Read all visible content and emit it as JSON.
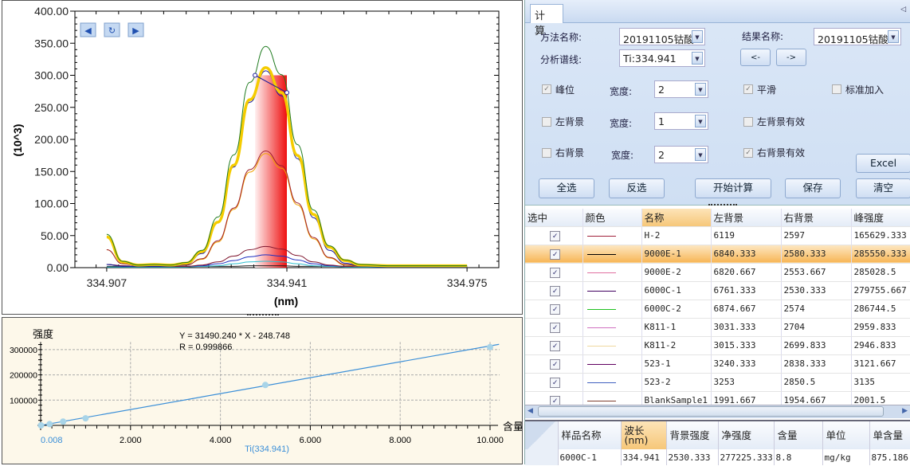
{
  "spectrum": {
    "nav_buttons": {
      "prev": "◀",
      "refresh": "↻",
      "next": "▶"
    },
    "chart_data": {
      "type": "line",
      "ylabel": "(10^3)",
      "xlabel": "(nm)",
      "ylim": [
        0,
        400
      ],
      "xlim": [
        334.901,
        334.981
      ],
      "yticks": [
        "0.00",
        "50.00",
        "100.00",
        "150.00",
        "200.00",
        "250.00",
        "300.00",
        "350.00",
        "400.00"
      ],
      "xticks": [
        "334.907",
        "334.941",
        "334.975"
      ],
      "x": [
        334.907,
        334.91,
        334.913,
        334.916,
        334.919,
        334.922,
        334.925,
        334.928,
        334.931,
        334.934,
        334.937,
        334.94,
        334.943,
        334.946,
        334.949,
        334.952,
        334.955,
        334.96,
        334.965,
        334.97,
        334.975
      ],
      "series": [
        {
          "color": "#1e7a1e",
          "width": 1,
          "values": [
            52,
            10,
            4,
            5,
            4,
            8,
            27,
            79,
            176,
            289,
            345,
            301,
            192,
            90,
            34,
            12,
            5,
            3,
            3,
            3,
            3
          ]
        },
        {
          "color": "#f5cc00",
          "width": 3.5,
          "values": [
            48,
            9,
            4,
            5,
            4,
            7,
            25,
            71,
            160,
            262,
            312,
            273,
            175,
            83,
            32,
            11,
            4,
            3,
            3,
            3,
            3
          ]
        },
        {
          "color": "#1a1a9a",
          "width": 1,
          "values": [
            5,
            2,
            2,
            2,
            2,
            5,
            22,
            70,
            157,
            258,
            307,
            268,
            170,
            78,
            27,
            7,
            2,
            1,
            1,
            1,
            1
          ]
        },
        {
          "color": "#a0202a",
          "width": 1,
          "values": [
            28,
            6,
            3,
            4,
            3,
            4,
            14,
            42,
            93,
            153,
            182,
            159,
            101,
            47,
            16,
            5,
            2,
            2,
            2,
            2,
            2
          ]
        },
        {
          "color": "#f0a000",
          "width": 1,
          "values": [
            28,
            6,
            3,
            4,
            3,
            4,
            13,
            40,
            91,
            149,
            178,
            155,
            98,
            45,
            15,
            4,
            2,
            2,
            2,
            2,
            2
          ]
        },
        {
          "color": "#801830",
          "width": 1,
          "values": [
            5,
            3,
            2,
            2,
            2,
            2,
            4,
            9,
            18,
            28,
            33,
            29,
            19,
            9,
            4,
            2,
            2,
            2,
            2,
            2,
            2
          ]
        },
        {
          "color": "#2030c0",
          "width": 1,
          "values": [
            5,
            3,
            2,
            2,
            2,
            2,
            3,
            6,
            11,
            17,
            20,
            18,
            12,
            6,
            3,
            2,
            2,
            2,
            2,
            2,
            2
          ]
        },
        {
          "color": "#30c0d0",
          "width": 1,
          "values": [
            1,
            1,
            1,
            1,
            1,
            1,
            2,
            3,
            6,
            9,
            10,
            9,
            6,
            3,
            2,
            1,
            1,
            1,
            1,
            1,
            1
          ]
        },
        {
          "color": "#202020",
          "width": 1,
          "values": [
            2,
            2,
            2,
            2,
            2,
            2,
            2,
            2,
            2,
            3,
            3,
            3,
            2,
            2,
            2,
            2,
            2,
            2,
            2,
            2,
            2
          ]
        }
      ],
      "integration_window": [
        334.935,
        334.941
      ],
      "peak_marker_line": {
        "x": [
          334.935,
          334.941
        ],
        "y": [
          300,
          273
        ]
      }
    }
  },
  "calibration": {
    "equation": "Y = 31490.240 * X - 248.748",
    "r_value": "R = 0.999866",
    "chart_data": {
      "type": "scatter",
      "ylabel": "强度",
      "xlabel": "含量(",
      "series_label": "Ti(334.941)",
      "first_x_label": "0.008",
      "xticks": [
        "2.000",
        "4.000",
        "6.000",
        "8.000",
        "10.000"
      ],
      "yticks": [
        "100000",
        "200000",
        "300000"
      ],
      "xlim": [
        0,
        10.2
      ],
      "ylim": [
        0,
        330000
      ],
      "points": {
        "x": [
          0.008,
          0.2,
          0.5,
          1.0,
          5.0,
          10.0
        ],
        "y": [
          0,
          5000,
          15000,
          28000,
          160000,
          310000
        ]
      },
      "fit": {
        "slope": 31490.24,
        "intercept": -248.748
      },
      "line_color": "#3b8fd8",
      "point_color": "#a8d4e8"
    }
  },
  "panel": {
    "tab": "计 算",
    "method_label": "方法名称:",
    "method_value": "20191105钴酸",
    "result_label": "结果名称:",
    "result_value": "20191105钴酸",
    "line_label": "分析谱线:",
    "line_value": "Ti:334.941",
    "prev_btn": "<-",
    "next_btn": "->",
    "peak_label": "峰位",
    "peak_checked": true,
    "width_label": "宽度:",
    "width1": "2",
    "width2": "1",
    "width3": "2",
    "smooth_label": "平滑",
    "smooth_checked": true,
    "std_add_label": "标准加入",
    "std_add_checked": false,
    "left_bg_label": "左背景",
    "left_bg_checked": false,
    "left_bg_valid_label": "左背景有效",
    "left_bg_valid_checked": false,
    "right_bg_label": "右背景",
    "right_bg_checked": false,
    "right_bg_valid_label": "右背景有效",
    "right_bg_valid_checked": true,
    "excel": "Excel",
    "select_all": "全选",
    "invert": "反选",
    "calculate": "开始计算",
    "save": "保存",
    "clear": "清空"
  },
  "grid": {
    "headers": [
      "选中",
      "颜色",
      "名称",
      "左背景",
      "右背景",
      "峰强度"
    ],
    "selected_index": 1,
    "rows": [
      {
        "checked": true,
        "color": "#a0203a",
        "name": "H-2",
        "left": "6119",
        "right": "2597",
        "peak": "165629.333"
      },
      {
        "checked": true,
        "color": "#000000",
        "name": "9000E-1",
        "left": "6840.333",
        "right": "2580.333",
        "peak": "285550.333"
      },
      {
        "checked": true,
        "color": "#e070a0",
        "name": "9000E-2",
        "left": "6820.667",
        "right": "2553.667",
        "peak": "285028.5"
      },
      {
        "checked": true,
        "color": "#400060",
        "name": "6000C-1",
        "left": "6761.333",
        "right": "2530.333",
        "peak": "279755.667"
      },
      {
        "checked": true,
        "color": "#20c020",
        "name": "6000C-2",
        "left": "6874.667",
        "right": "2574",
        "peak": "286744.5"
      },
      {
        "checked": true,
        "color": "#d070c0",
        "name": "K811-1",
        "left": "3031.333",
        "right": "2704",
        "peak": "2959.833"
      },
      {
        "checked": true,
        "color": "#f0d8a0",
        "name": "K811-2",
        "left": "3015.333",
        "right": "2699.833",
        "peak": "2946.833"
      },
      {
        "checked": true,
        "color": "#600060",
        "name": "523-1",
        "left": "3240.333",
        "right": "2838.333",
        "peak": "3121.667"
      },
      {
        "checked": true,
        "color": "#4060c0",
        "name": "523-2",
        "left": "3253",
        "right": "2850.5",
        "peak": "3135"
      },
      {
        "checked": true,
        "color": "#804030",
        "name": "BlankSample1",
        "left": "1991.667",
        "right": "1954.667",
        "peak": "2001.5"
      }
    ]
  },
  "result_grid": {
    "headers": [
      "样品名称",
      "波长(nm)",
      "背景强度",
      "净强度",
      "含量",
      "单位",
      "单含量"
    ],
    "row": [
      "6000C-1",
      "334.941",
      "2530.333",
      "277225.333",
      "8.8",
      "mg/kg",
      "875.186"
    ]
  }
}
